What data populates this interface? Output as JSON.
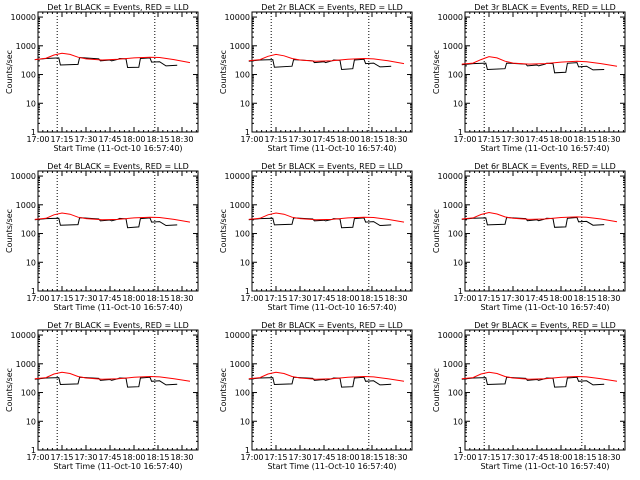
{
  "chart_data": [
    {
      "type": "line",
      "title": "Det 1r BLACK = Events, RED = LLD",
      "xlabel": "Start Time (11-Oct-10 16:57:40)",
      "ylabel": "Counts/sec",
      "x_tick_labels": [
        "17:00",
        "17:15",
        "17:30",
        "17:45",
        "18:00",
        "18:15",
        "18:30"
      ],
      "y_tick_labels": [
        "1",
        "10",
        "100",
        "1000",
        "10000"
      ],
      "ylim": [
        1,
        15000
      ],
      "yscale": "log",
      "vlines": [
        "17:12",
        "18:13"
      ],
      "grid": false,
      "series": [
        {
          "name": "Events",
          "color": "#000000",
          "x": [
            "16:58",
            "17:05",
            "17:13",
            "17:14",
            "17:25",
            "17:26",
            "17:38",
            "17:39",
            "17:45",
            "17:46",
            "17:50",
            "17:51",
            "17:55",
            "17:56",
            "18:03",
            "18:04",
            "18:10",
            "18:11",
            "18:16",
            "18:20",
            "18:27"
          ],
          "y": [
            330,
            360,
            380,
            215,
            225,
            390,
            350,
            300,
            320,
            300,
            340,
            360,
            350,
            175,
            180,
            360,
            380,
            270,
            280,
            200,
            210
          ]
        },
        {
          "name": "LLD",
          "color": "#ff0000",
          "x": [
            "16:58",
            "17:05",
            "17:10",
            "17:15",
            "17:20",
            "17:25",
            "17:30",
            "17:40",
            "17:50",
            "18:00",
            "18:10",
            "18:16",
            "18:25",
            "18:35"
          ],
          "y": [
            330,
            370,
            480,
            550,
            500,
            400,
            350,
            320,
            340,
            380,
            400,
            390,
            330,
            260
          ]
        }
      ]
    },
    {
      "type": "line",
      "title": "Det 2r BLACK = Events, RED = LLD",
      "xlabel": "Start Time (11-Oct-10 16:57:40)",
      "ylabel": "Counts/sec",
      "x_tick_labels": [
        "17:00",
        "17:15",
        "17:30",
        "17:45",
        "18:00",
        "18:15",
        "18:30"
      ],
      "y_tick_labels": [
        "1",
        "10",
        "100",
        "1000",
        "10000"
      ],
      "ylim": [
        1,
        15000
      ],
      "yscale": "log",
      "vlines": [
        "17:12",
        "18:13"
      ],
      "grid": false,
      "series": [
        {
          "name": "Events",
          "color": "#000000",
          "x": [
            "16:58",
            "17:05",
            "17:13",
            "17:14",
            "17:25",
            "17:26",
            "17:38",
            "17:39",
            "17:45",
            "17:46",
            "17:50",
            "17:51",
            "17:55",
            "17:56",
            "18:03",
            "18:04",
            "18:10",
            "18:11",
            "18:16",
            "18:20",
            "18:27"
          ],
          "y": [
            290,
            320,
            330,
            180,
            195,
            330,
            300,
            260,
            280,
            260,
            300,
            320,
            310,
            150,
            160,
            320,
            340,
            240,
            250,
            185,
            195
          ]
        },
        {
          "name": "LLD",
          "color": "#ff0000",
          "x": [
            "16:58",
            "17:05",
            "17:10",
            "17:15",
            "17:20",
            "17:25",
            "17:30",
            "17:40",
            "17:50",
            "18:00",
            "18:10",
            "18:16",
            "18:25",
            "18:35"
          ],
          "y": [
            300,
            330,
            430,
            500,
            450,
            360,
            320,
            290,
            300,
            340,
            360,
            350,
            300,
            240
          ]
        }
      ]
    },
    {
      "type": "line",
      "title": "Det 3r BLACK = Events, RED = LLD",
      "xlabel": "Start Time (11-Oct-10 16:57:40)",
      "ylabel": "Counts/sec",
      "x_tick_labels": [
        "17:00",
        "17:15",
        "17:30",
        "17:45",
        "18:00",
        "18:15",
        "18:30"
      ],
      "y_tick_labels": [
        "1",
        "10",
        "100",
        "1000",
        "10000"
      ],
      "ylim": [
        1,
        15000
      ],
      "yscale": "log",
      "vlines": [
        "17:12",
        "18:13"
      ],
      "grid": false,
      "series": [
        {
          "name": "Events",
          "color": "#000000",
          "x": [
            "16:58",
            "17:05",
            "17:13",
            "17:14",
            "17:25",
            "17:26",
            "17:38",
            "17:39",
            "17:45",
            "17:46",
            "17:50",
            "17:51",
            "17:55",
            "17:56",
            "18:03",
            "18:04",
            "18:10",
            "18:11",
            "18:16",
            "18:20",
            "18:27"
          ],
          "y": [
            220,
            240,
            250,
            150,
            160,
            250,
            230,
            200,
            215,
            200,
            230,
            245,
            240,
            115,
            120,
            245,
            260,
            185,
            195,
            145,
            150
          ]
        },
        {
          "name": "LLD",
          "color": "#ff0000",
          "x": [
            "16:58",
            "17:05",
            "17:10",
            "17:15",
            "17:20",
            "17:25",
            "17:30",
            "17:40",
            "17:50",
            "18:00",
            "18:10",
            "18:16",
            "18:25",
            "18:35"
          ],
          "y": [
            230,
            250,
            330,
            420,
            380,
            290,
            250,
            230,
            240,
            270,
            290,
            280,
            240,
            195
          ]
        }
      ]
    },
    {
      "type": "line",
      "title": "Det 4r BLACK = Events, RED = LLD",
      "xlabel": "Start Time (11-Oct-10 16:57:40)",
      "ylabel": "Counts/sec",
      "x_tick_labels": [
        "17:00",
        "17:15",
        "17:30",
        "17:45",
        "18:00",
        "18:15",
        "18:30"
      ],
      "y_tick_labels": [
        "1",
        "10",
        "100",
        "1000",
        "10000"
      ],
      "ylim": [
        1,
        15000
      ],
      "yscale": "log",
      "vlines": [
        "17:12",
        "18:13"
      ],
      "grid": false,
      "series": [
        {
          "name": "Events",
          "color": "#000000",
          "x": [
            "16:58",
            "17:05",
            "17:13",
            "17:14",
            "17:25",
            "17:26",
            "17:38",
            "17:39",
            "17:45",
            "17:46",
            "17:50",
            "17:51",
            "17:55",
            "17:56",
            "18:03",
            "18:04",
            "18:10",
            "18:11",
            "18:16",
            "18:20",
            "18:27"
          ],
          "y": [
            300,
            330,
            340,
            195,
            205,
            355,
            320,
            275,
            295,
            275,
            315,
            335,
            325,
            160,
            170,
            330,
            350,
            250,
            260,
            190,
            200
          ]
        },
        {
          "name": "LLD",
          "color": "#ff0000",
          "x": [
            "16:58",
            "17:05",
            "17:10",
            "17:15",
            "17:20",
            "17:25",
            "17:30",
            "17:40",
            "17:50",
            "18:00",
            "18:10",
            "18:16",
            "18:25",
            "18:35"
          ],
          "y": [
            310,
            340,
            450,
            520,
            470,
            370,
            330,
            300,
            310,
            350,
            370,
            360,
            310,
            250
          ]
        }
      ]
    },
    {
      "type": "line",
      "title": "Det 5r BLACK = Events, RED = LLD",
      "xlabel": "Start Time (11-Oct-10 16:57:40)",
      "ylabel": "Counts/sec",
      "x_tick_labels": [
        "17:00",
        "17:15",
        "17:30",
        "17:45",
        "18:00",
        "18:15",
        "18:30"
      ],
      "y_tick_labels": [
        "1",
        "10",
        "100",
        "1000",
        "10000"
      ],
      "ylim": [
        1,
        15000
      ],
      "yscale": "log",
      "vlines": [
        "17:12",
        "18:13"
      ],
      "grid": false,
      "series": [
        {
          "name": "Events",
          "color": "#000000",
          "x": [
            "16:58",
            "17:05",
            "17:13",
            "17:14",
            "17:25",
            "17:26",
            "17:38",
            "17:39",
            "17:45",
            "17:46",
            "17:50",
            "17:51",
            "17:55",
            "17:56",
            "18:03",
            "18:04",
            "18:10",
            "18:11",
            "18:16",
            "18:20",
            "18:27"
          ],
          "y": [
            300,
            330,
            340,
            200,
            210,
            350,
            320,
            275,
            290,
            275,
            310,
            330,
            320,
            160,
            165,
            330,
            350,
            250,
            260,
            190,
            200
          ]
        },
        {
          "name": "LLD",
          "color": "#ff0000",
          "x": [
            "16:58",
            "17:05",
            "17:10",
            "17:15",
            "17:20",
            "17:25",
            "17:30",
            "17:40",
            "17:50",
            "18:00",
            "18:10",
            "18:16",
            "18:25",
            "18:35"
          ],
          "y": [
            310,
            340,
            450,
            520,
            470,
            370,
            330,
            300,
            310,
            350,
            370,
            360,
            310,
            250
          ]
        }
      ]
    },
    {
      "type": "line",
      "title": "Det 6r BLACK = Events, RED = LLD",
      "xlabel": "Start Time (11-Oct-10 16:57:40)",
      "ylabel": "Counts/sec",
      "x_tick_labels": [
        "17:00",
        "17:15",
        "17:30",
        "17:45",
        "18:00",
        "18:15",
        "18:30"
      ],
      "y_tick_labels": [
        "1",
        "10",
        "100",
        "1000",
        "10000"
      ],
      "ylim": [
        1,
        15000
      ],
      "yscale": "log",
      "vlines": [
        "17:12",
        "18:13"
      ],
      "grid": false,
      "series": [
        {
          "name": "Events",
          "color": "#000000",
          "x": [
            "16:58",
            "17:05",
            "17:13",
            "17:14",
            "17:25",
            "17:26",
            "17:38",
            "17:39",
            "17:45",
            "17:46",
            "17:50",
            "17:51",
            "17:55",
            "17:56",
            "18:03",
            "18:04",
            "18:10",
            "18:11",
            "18:16",
            "18:20",
            "18:27"
          ],
          "y": [
            310,
            340,
            350,
            200,
            210,
            360,
            330,
            280,
            300,
            280,
            320,
            340,
            330,
            165,
            170,
            340,
            360,
            255,
            265,
            195,
            205
          ]
        },
        {
          "name": "LLD",
          "color": "#ff0000",
          "x": [
            "16:58",
            "17:05",
            "17:10",
            "17:15",
            "17:20",
            "17:25",
            "17:30",
            "17:40",
            "17:50",
            "18:00",
            "18:10",
            "18:16",
            "18:25",
            "18:35"
          ],
          "y": [
            320,
            350,
            460,
            540,
            480,
            380,
            340,
            310,
            320,
            360,
            380,
            370,
            320,
            255
          ]
        }
      ]
    },
    {
      "type": "line",
      "title": "Det 7r BLACK = Events, RED = LLD",
      "xlabel": "Start Time (11-Oct-10 16:57:40)",
      "ylabel": "Counts/sec",
      "x_tick_labels": [
        "17:00",
        "17:15",
        "17:30",
        "17:45",
        "18:00",
        "18:15",
        "18:30"
      ],
      "y_tick_labels": [
        "1",
        "10",
        "100",
        "1000",
        "10000"
      ],
      "ylim": [
        1,
        15000
      ],
      "yscale": "log",
      "vlines": [
        "17:12",
        "18:13"
      ],
      "grid": false,
      "series": [
        {
          "name": "Events",
          "color": "#000000",
          "x": [
            "16:58",
            "17:05",
            "17:13",
            "17:14",
            "17:25",
            "17:26",
            "17:38",
            "17:39",
            "17:45",
            "17:46",
            "17:50",
            "17:51",
            "17:55",
            "17:56",
            "18:03",
            "18:04",
            "18:10",
            "18:11",
            "18:16",
            "18:20",
            "18:27"
          ],
          "y": [
            290,
            320,
            330,
            190,
            200,
            340,
            310,
            265,
            285,
            265,
            305,
            320,
            315,
            155,
            160,
            320,
            340,
            245,
            255,
            185,
            195
          ]
        },
        {
          "name": "LLD",
          "color": "#ff0000",
          "x": [
            "16:58",
            "17:05",
            "17:10",
            "17:15",
            "17:20",
            "17:25",
            "17:30",
            "17:40",
            "17:50",
            "18:00",
            "18:10",
            "18:16",
            "18:25",
            "18:35"
          ],
          "y": [
            300,
            330,
            440,
            510,
            460,
            360,
            320,
            290,
            300,
            340,
            360,
            350,
            300,
            245
          ]
        }
      ]
    },
    {
      "type": "line",
      "title": "Det 8r BLACK = Events, RED = LLD",
      "xlabel": "Start Time (11-Oct-10 16:57:40)",
      "ylabel": "Counts/sec",
      "x_tick_labels": [
        "17:00",
        "17:15",
        "17:30",
        "17:45",
        "18:00",
        "18:15",
        "18:30"
      ],
      "y_tick_labels": [
        "1",
        "10",
        "100",
        "1000",
        "10000"
      ],
      "ylim": [
        1,
        15000
      ],
      "yscale": "log",
      "vlines": [
        "17:12",
        "18:13"
      ],
      "grid": false,
      "series": [
        {
          "name": "Events",
          "color": "#000000",
          "x": [
            "16:58",
            "17:05",
            "17:13",
            "17:14",
            "17:25",
            "17:26",
            "17:38",
            "17:39",
            "17:45",
            "17:46",
            "17:50",
            "17:51",
            "17:55",
            "17:56",
            "18:03",
            "18:04",
            "18:10",
            "18:11",
            "18:16",
            "18:20",
            "18:27"
          ],
          "y": [
            290,
            320,
            330,
            190,
            200,
            340,
            310,
            265,
            285,
            265,
            305,
            320,
            315,
            155,
            160,
            320,
            340,
            245,
            255,
            185,
            195
          ]
        },
        {
          "name": "LLD",
          "color": "#ff0000",
          "x": [
            "16:58",
            "17:05",
            "17:10",
            "17:15",
            "17:20",
            "17:25",
            "17:30",
            "17:40",
            "17:50",
            "18:00",
            "18:10",
            "18:16",
            "18:25",
            "18:35"
          ],
          "y": [
            300,
            330,
            440,
            510,
            460,
            360,
            320,
            290,
            300,
            340,
            360,
            350,
            300,
            245
          ]
        }
      ]
    },
    {
      "type": "line",
      "title": "Det 9r BLACK = Events, RED = LLD",
      "xlabel": "Start Time (11-Oct-10 16:57:40)",
      "ylabel": "Counts/sec",
      "x_tick_labels": [
        "17:00",
        "17:15",
        "17:30",
        "17:45",
        "18:00",
        "18:15",
        "18:30"
      ],
      "y_tick_labels": [
        "1",
        "10",
        "100",
        "1000",
        "10000"
      ],
      "ylim": [
        1,
        15000
      ],
      "yscale": "log",
      "vlines": [
        "17:12",
        "18:13"
      ],
      "grid": false,
      "series": [
        {
          "name": "Events",
          "color": "#000000",
          "x": [
            "16:58",
            "17:05",
            "17:13",
            "17:14",
            "17:25",
            "17:26",
            "17:38",
            "17:39",
            "17:45",
            "17:46",
            "17:50",
            "17:51",
            "17:55",
            "17:56",
            "18:03",
            "18:04",
            "18:10",
            "18:11",
            "18:16",
            "18:20",
            "18:27"
          ],
          "y": [
            290,
            320,
            330,
            190,
            200,
            340,
            310,
            265,
            285,
            265,
            305,
            320,
            315,
            155,
            160,
            320,
            340,
            245,
            255,
            185,
            195
          ]
        },
        {
          "name": "LLD",
          "color": "#ff0000",
          "x": [
            "16:58",
            "17:05",
            "17:10",
            "17:15",
            "17:20",
            "17:25",
            "17:30",
            "17:40",
            "17:50",
            "18:00",
            "18:10",
            "18:16",
            "18:25",
            "18:35"
          ],
          "y": [
            300,
            330,
            440,
            510,
            460,
            360,
            320,
            290,
            300,
            340,
            360,
            350,
            300,
            245
          ]
        }
      ]
    }
  ]
}
